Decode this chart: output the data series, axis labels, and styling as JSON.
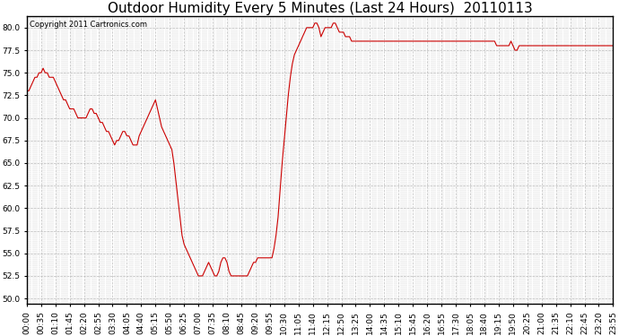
{
  "title": "Outdoor Humidity Every 5 Minutes (Last 24 Hours)  20110113",
  "copyright": "Copyright 2011 Cartronics.com",
  "ylim": [
    49.375,
    81.25
  ],
  "yticks": [
    50.0,
    52.5,
    55.0,
    57.5,
    60.0,
    62.5,
    65.0,
    67.5,
    70.0,
    72.5,
    75.0,
    77.5,
    80.0
  ],
  "line_color": "#cc0000",
  "bg_color": "#ffffff",
  "grid_color": "#bbbbbb",
  "title_fontsize": 11,
  "copyright_fontsize": 6,
  "tick_fontsize": 6.5,
  "humidity": [
    73.0,
    73.0,
    73.5,
    74.0,
    74.5,
    74.5,
    75.0,
    75.0,
    75.5,
    75.0,
    75.0,
    74.5,
    74.5,
    74.5,
    74.0,
    73.5,
    73.0,
    72.5,
    72.0,
    72.0,
    71.5,
    71.0,
    71.0,
    71.0,
    70.5,
    70.0,
    70.0,
    70.0,
    70.0,
    70.0,
    70.5,
    71.0,
    71.0,
    70.5,
    70.5,
    70.0,
    69.5,
    69.5,
    69.0,
    68.5,
    68.5,
    68.0,
    67.5,
    67.0,
    67.5,
    67.5,
    68.0,
    68.5,
    68.5,
    68.0,
    68.0,
    67.5,
    67.0,
    67.0,
    67.0,
    68.0,
    68.5,
    69.0,
    69.5,
    70.0,
    70.5,
    71.0,
    71.5,
    72.0,
    71.0,
    70.0,
    69.0,
    68.5,
    68.0,
    67.5,
    67.0,
    66.5,
    65.0,
    63.0,
    61.0,
    59.0,
    57.0,
    56.0,
    55.5,
    55.0,
    54.5,
    54.0,
    53.5,
    53.0,
    52.5,
    52.5,
    52.5,
    53.0,
    53.5,
    54.0,
    53.5,
    53.0,
    52.5,
    52.5,
    53.0,
    54.0,
    54.5,
    54.5,
    54.0,
    53.0,
    52.5,
    52.5,
    52.5,
    52.5,
    52.5,
    52.5,
    52.5,
    52.5,
    52.5,
    53.0,
    53.5,
    54.0,
    54.0,
    54.5,
    54.5,
    54.5,
    54.5,
    54.5,
    54.5,
    54.5,
    54.5,
    55.5,
    57.0,
    59.0,
    62.0,
    65.0,
    67.5,
    70.0,
    72.5,
    74.5,
    76.0,
    77.0,
    77.5,
    78.0,
    78.5,
    79.0,
    79.5,
    80.0,
    80.0,
    80.0,
    80.0,
    80.5,
    80.5,
    80.0,
    79.0,
    79.5,
    80.0,
    80.0,
    80.0,
    80.0,
    80.5,
    80.5,
    80.0,
    79.5,
    79.5,
    79.5,
    79.0,
    79.0,
    79.0,
    78.5,
    78.5,
    78.5,
    78.5,
    78.5,
    78.5,
    78.5,
    78.5,
    78.5,
    78.5,
    78.5,
    78.5,
    78.5,
    78.5,
    78.5,
    78.5,
    78.5,
    78.5,
    78.5,
    78.5,
    78.5,
    78.5,
    78.5,
    78.5,
    78.5,
    78.5,
    78.5,
    78.5,
    78.5,
    78.5,
    78.5,
    78.5,
    78.5,
    78.5,
    78.5,
    78.5,
    78.5,
    78.5,
    78.5,
    78.5,
    78.5,
    78.5,
    78.5,
    78.5,
    78.5,
    78.5,
    78.5,
    78.5,
    78.5,
    78.5,
    78.5,
    78.5,
    78.5,
    78.5,
    78.5,
    78.5,
    78.5,
    78.5,
    78.5,
    78.5,
    78.5,
    78.5,
    78.5,
    78.5,
    78.5,
    78.5,
    78.5,
    78.5,
    78.5,
    78.5,
    78.5,
    78.0,
    78.0,
    78.0,
    78.0,
    78.0,
    78.0,
    78.0,
    78.5,
    78.0,
    77.5,
    77.5,
    78.0,
    78.0,
    78.0,
    78.0,
    78.0,
    78.0,
    78.0,
    78.0,
    78.0,
    78.0,
    78.0,
    78.0,
    78.0,
    78.0,
    78.0,
    78.0,
    78.0,
    78.0,
    78.0,
    78.0,
    78.0,
    78.0,
    78.0,
    78.0,
    78.0,
    78.0,
    78.0,
    78.0,
    78.0,
    78.0,
    78.0,
    78.0,
    78.0,
    78.0,
    78.0,
    78.0,
    78.0,
    78.0,
    78.0,
    78.0,
    78.0,
    78.0,
    78.0,
    78.0,
    78.0,
    78.0,
    78.0
  ],
  "xtick_labels": [
    "00:00",
    "00:35",
    "01:10",
    "01:45",
    "02:20",
    "02:55",
    "03:30",
    "04:05",
    "04:40",
    "05:15",
    "05:50",
    "06:25",
    "07:00",
    "07:35",
    "08:10",
    "08:45",
    "09:20",
    "09:55",
    "10:30",
    "11:05",
    "11:40",
    "12:15",
    "12:50",
    "13:25",
    "14:00",
    "14:35",
    "15:10",
    "15:45",
    "16:20",
    "16:55",
    "17:30",
    "18:05",
    "18:40",
    "19:15",
    "19:50",
    "20:25",
    "21:00",
    "21:35",
    "22:10",
    "22:45",
    "23:20",
    "23:55"
  ]
}
